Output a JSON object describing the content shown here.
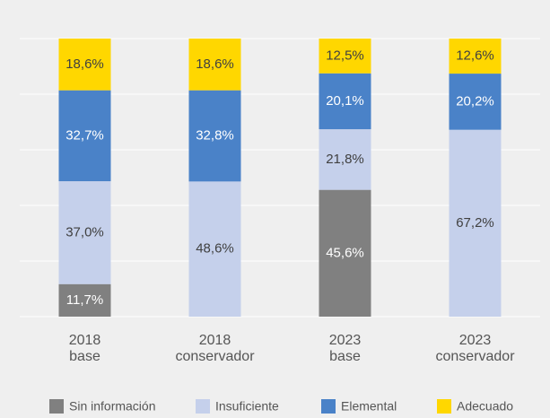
{
  "chart_data": {
    "type": "stacked_bar",
    "categories": [
      [
        "2018",
        "base"
      ],
      [
        "2018",
        "conservador"
      ],
      [
        "2023",
        "base"
      ],
      [
        "2023",
        "conservador"
      ]
    ],
    "series": [
      {
        "name": "Sin información",
        "color": "#808080",
        "label_color": "#ffffff",
        "values": [
          11.7,
          null,
          45.6,
          null
        ],
        "value_labels": [
          "11,7%",
          null,
          "45,6%",
          null
        ]
      },
      {
        "name": "Insuficiente",
        "color": "#c5d0eb",
        "label_color": "#404040",
        "values": [
          37.0,
          48.6,
          21.8,
          67.2
        ],
        "value_labels": [
          "37,0%",
          "48,6%",
          "21,8%",
          "67,2%"
        ]
      },
      {
        "name": "Elemental",
        "color": "#4a82c8",
        "label_color": "#ffffff",
        "values": [
          32.7,
          32.8,
          20.1,
          20.2
        ],
        "value_labels": [
          "32,7%",
          "32,8%",
          "20,1%",
          "20,2%"
        ]
      },
      {
        "name": "Adecuado",
        "color": "#ffd700",
        "label_color": "#404040",
        "values": [
          18.6,
          18.6,
          12.5,
          12.6
        ],
        "value_labels": [
          "18,6%",
          "18,6%",
          "12,5%",
          "12,6%"
        ]
      }
    ],
    "ylim": [
      0,
      100
    ],
    "yticks": [
      0,
      20,
      40,
      60,
      80,
      100
    ],
    "grid": true
  }
}
